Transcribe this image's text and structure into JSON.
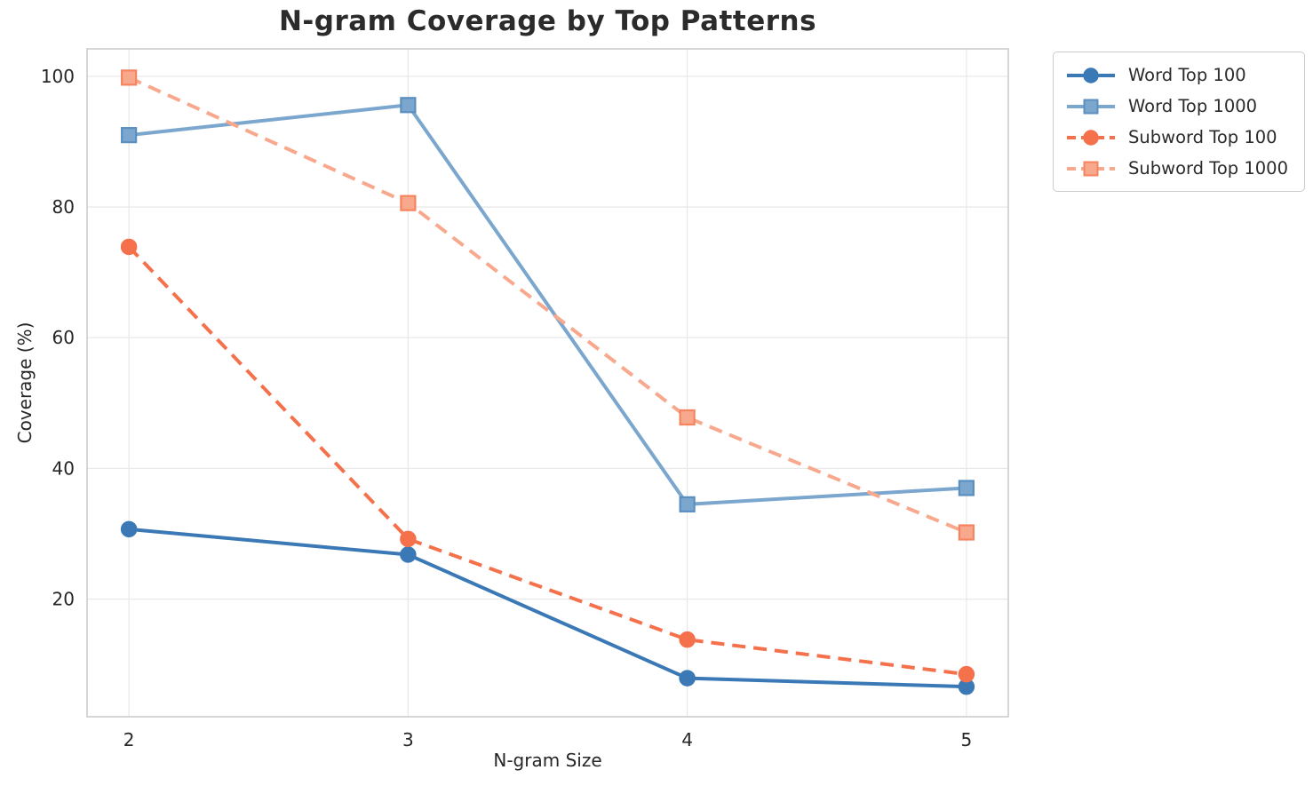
{
  "chart_data": {
    "type": "line",
    "title": "N-gram Coverage by Top Patterns",
    "xlabel": "N-gram Size",
    "ylabel": "Coverage (%)",
    "x": [
      2,
      3,
      4,
      5
    ],
    "xticks": [
      2,
      3,
      4,
      5
    ],
    "yticks": [
      20,
      40,
      60,
      80,
      100
    ],
    "xlim": [
      1.85,
      5.15
    ],
    "ylim": [
      2,
      104.2
    ],
    "grid": true,
    "legend_position": "outside upper right",
    "colors": {
      "blue": "#3a79b5",
      "blue_light": "#7ba6ce",
      "blue_light_edge": "#5a8fc0",
      "orange": "#f4714c",
      "orange_light": "#f8a88d",
      "orange_light_edge": "#f5845f",
      "grid": "#e9e9e9",
      "spine": "#cccccc",
      "tick_text": "#262626"
    },
    "series": [
      {
        "name": "Word Top 100",
        "values": [
          30.7,
          26.8,
          7.9,
          6.6
        ],
        "color": "#3a79b5",
        "edge": "#3a79b5",
        "line_style": "solid",
        "marker": "circle"
      },
      {
        "name": "Word Top 1000",
        "values": [
          91.0,
          95.6,
          34.5,
          37.0
        ],
        "color": "#7ba6ce",
        "edge": "#5a8fc0",
        "line_style": "solid",
        "marker": "square"
      },
      {
        "name": "Subword Top 100",
        "values": [
          73.9,
          29.2,
          13.8,
          8.5
        ],
        "color": "#f4714c",
        "edge": "#f4714c",
        "line_style": "dashed",
        "marker": "circle"
      },
      {
        "name": "Subword Top 1000",
        "values": [
          99.8,
          80.6,
          47.8,
          30.2
        ],
        "color": "#f8a88d",
        "edge": "#f5845f",
        "line_style": "dashed",
        "marker": "square"
      }
    ]
  }
}
